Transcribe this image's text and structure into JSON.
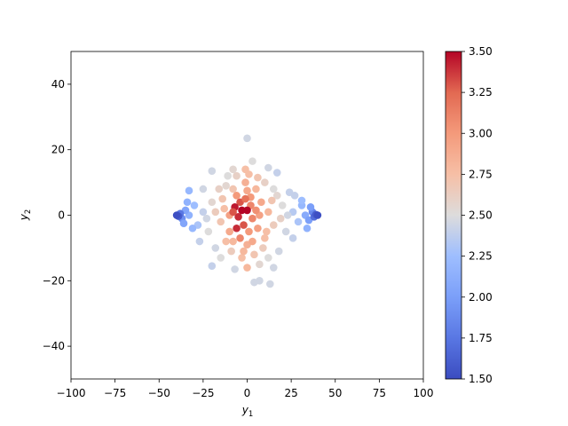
{
  "chart_data": {
    "type": "scatter",
    "title": "",
    "xlabel": "y",
    "xlabel_sub": "1",
    "ylabel": "y",
    "ylabel_sub": "2",
    "xlim": [
      -100,
      100
    ],
    "ylim": [
      -50,
      50
    ],
    "xticks": [
      -100,
      -75,
      -50,
      -25,
      0,
      25,
      50,
      75,
      100
    ],
    "yticks": [
      -40,
      -20,
      0,
      20,
      40
    ],
    "xtick_labels": [
      "−100",
      "−75",
      "−50",
      "−25",
      "0",
      "25",
      "50",
      "75",
      "100"
    ],
    "ytick_labels": [
      "−40",
      "−20",
      "0",
      "20",
      "40"
    ],
    "grid": false,
    "colorbar": {
      "colormap": "coolwarm",
      "range": [
        1.5,
        3.5
      ],
      "ticks": [
        1.5,
        1.75,
        2.0,
        2.25,
        2.5,
        2.75,
        3.0,
        3.25,
        3.5
      ],
      "tick_labels": [
        "1.50",
        "1.75",
        "2.00",
        "2.25",
        "2.50",
        "2.75",
        "3.00",
        "3.25",
        "3.50"
      ]
    },
    "points": [
      {
        "x": 0,
        "y": 23.5,
        "c": 2.45
      },
      {
        "x": 3,
        "y": 16.5,
        "c": 2.5
      },
      {
        "x": 12,
        "y": 14.5,
        "c": 2.45
      },
      {
        "x": -20,
        "y": 13.5,
        "c": 2.45
      },
      {
        "x": 17,
        "y": 13,
        "c": 2.4
      },
      {
        "x": -1,
        "y": 14,
        "c": 2.75
      },
      {
        "x": -6,
        "y": 12,
        "c": 2.6
      },
      {
        "x": 6,
        "y": 11.5,
        "c": 2.7
      },
      {
        "x": -33,
        "y": 7.5,
        "c": 2.2
      },
      {
        "x": -12,
        "y": 9,
        "c": 2.55
      },
      {
        "x": 15,
        "y": 8,
        "c": 2.5
      },
      {
        "x": 24,
        "y": 7,
        "c": 2.4
      },
      {
        "x": 0,
        "y": 7.5,
        "c": 2.9
      },
      {
        "x": -4,
        "y": 4,
        "c": 3.3
      },
      {
        "x": 2,
        "y": 3,
        "c": 3.1
      },
      {
        "x": -7,
        "y": 2.5,
        "c": 3.45
      },
      {
        "x": -3,
        "y": 1.5,
        "c": 3.5
      },
      {
        "x": 0,
        "y": 1.5,
        "c": 3.5
      },
      {
        "x": -5,
        "y": -0.5,
        "c": 3.4
      },
      {
        "x": 3,
        "y": -1,
        "c": 3.1
      },
      {
        "x": -2,
        "y": -3,
        "c": 3.3
      },
      {
        "x": -6,
        "y": -4,
        "c": 3.4
      },
      {
        "x": 1,
        "y": -5,
        "c": 3.0
      },
      {
        "x": 6,
        "y": -4,
        "c": 2.95
      },
      {
        "x": -10,
        "y": -5,
        "c": 2.9
      },
      {
        "x": 10,
        "y": -7,
        "c": 2.75
      },
      {
        "x": -8,
        "y": -8,
        "c": 2.8
      },
      {
        "x": 0,
        "y": -9,
        "c": 2.85
      },
      {
        "x": 8,
        "y": 4,
        "c": 2.9
      },
      {
        "x": 12,
        "y": 1,
        "c": 2.8
      },
      {
        "x": -13,
        "y": 2,
        "c": 2.75
      },
      {
        "x": -15,
        "y": -2,
        "c": 2.7
      },
      {
        "x": 15,
        "y": -3,
        "c": 2.65
      },
      {
        "x": -20,
        "y": 4,
        "c": 2.55
      },
      {
        "x": 20,
        "y": 3,
        "c": 2.5
      },
      {
        "x": -22,
        "y": -5,
        "c": 2.5
      },
      {
        "x": 22,
        "y": -5,
        "c": 2.45
      },
      {
        "x": -25,
        "y": 1,
        "c": 2.4
      },
      {
        "x": 26,
        "y": 1,
        "c": 2.35
      },
      {
        "x": -28,
        "y": -3,
        "c": 2.3
      },
      {
        "x": 29,
        "y": -2,
        "c": 2.3
      },
      {
        "x": -30,
        "y": 3,
        "c": 2.25
      },
      {
        "x": 31,
        "y": 3,
        "c": 2.2
      },
      {
        "x": -33,
        "y": 0,
        "c": 2.15
      },
      {
        "x": 33,
        "y": 0,
        "c": 2.1
      },
      {
        "x": -35,
        "y": 1.5,
        "c": 2.05
      },
      {
        "x": 35,
        "y": -1.5,
        "c": 2.0
      },
      {
        "x": -37,
        "y": -1,
        "c": 1.9
      },
      {
        "x": 37,
        "y": 1,
        "c": 1.85
      },
      {
        "x": -38,
        "y": 0.5,
        "c": 1.75
      },
      {
        "x": 38,
        "y": -0.5,
        "c": 1.7
      },
      {
        "x": -39,
        "y": -0.3,
        "c": 1.6
      },
      {
        "x": 39,
        "y": 0.2,
        "c": 1.6
      },
      {
        "x": -40,
        "y": 0,
        "c": 1.52
      },
      {
        "x": 40,
        "y": 0,
        "c": 1.52
      },
      {
        "x": -18,
        "y": -10,
        "c": 2.45
      },
      {
        "x": 18,
        "y": -11,
        "c": 2.45
      },
      {
        "x": -15,
        "y": -13,
        "c": 2.5
      },
      {
        "x": 12,
        "y": -13,
        "c": 2.5
      },
      {
        "x": -20,
        "y": -15.5,
        "c": 2.4
      },
      {
        "x": -7,
        "y": -16.5,
        "c": 2.45
      },
      {
        "x": 7,
        "y": -15,
        "c": 2.55
      },
      {
        "x": 0,
        "y": -16,
        "c": 2.8
      },
      {
        "x": 15,
        "y": -16,
        "c": 2.45
      },
      {
        "x": 4,
        "y": -20.5,
        "c": 2.45
      },
      {
        "x": 7,
        "y": -20,
        "c": 2.45
      },
      {
        "x": 13,
        "y": -21,
        "c": 2.45
      },
      {
        "x": -3,
        "y": -13,
        "c": 2.75
      },
      {
        "x": 4,
        "y": -12,
        "c": 2.7
      },
      {
        "x": -11,
        "y": 12,
        "c": 2.5
      },
      {
        "x": 10,
        "y": 10,
        "c": 2.6
      },
      {
        "x": -25,
        "y": 8,
        "c": 2.45
      },
      {
        "x": 27,
        "y": 6,
        "c": 2.4
      },
      {
        "x": -27,
        "y": -8,
        "c": 2.4
      },
      {
        "x": 26,
        "y": -7,
        "c": 2.4
      },
      {
        "x": -8,
        "y": 8,
        "c": 2.7
      },
      {
        "x": 5,
        "y": 8,
        "c": 2.8
      },
      {
        "x": -9,
        "y": -11,
        "c": 2.65
      },
      {
        "x": 9,
        "y": -10,
        "c": 2.65
      },
      {
        "x": -1,
        "y": 10,
        "c": 2.85
      },
      {
        "x": 2,
        "y": 5.5,
        "c": 3.0
      },
      {
        "x": -6,
        "y": 6,
        "c": 3.0
      },
      {
        "x": 7,
        "y": 0,
        "c": 2.95
      },
      {
        "x": -10,
        "y": 0,
        "c": 2.95
      },
      {
        "x": -12,
        "y": -8,
        "c": 2.75
      },
      {
        "x": 11,
        "y": -5,
        "c": 2.75
      },
      {
        "x": 3,
        "y": -8,
        "c": 2.9
      },
      {
        "x": -4,
        "y": -7,
        "c": 3.1
      },
      {
        "x": -16,
        "y": 8,
        "c": 2.6
      },
      {
        "x": 17,
        "y": 6,
        "c": 2.55
      },
      {
        "x": -18,
        "y": 1,
        "c": 2.65
      },
      {
        "x": 19,
        "y": -1,
        "c": 2.6
      },
      {
        "x": -23,
        "y": -1,
        "c": 2.45
      },
      {
        "x": 23,
        "y": 0,
        "c": 2.45
      },
      {
        "x": -31,
        "y": -4,
        "c": 2.2
      },
      {
        "x": 31,
        "y": 4.5,
        "c": 2.25
      },
      {
        "x": -34,
        "y": 4,
        "c": 2.15
      },
      {
        "x": 34,
        "y": -4,
        "c": 2.15
      },
      {
        "x": -36,
        "y": -2.5,
        "c": 2.05
      },
      {
        "x": 36,
        "y": 2.5,
        "c": 2.0
      },
      {
        "x": -8,
        "y": 14,
        "c": 2.55
      },
      {
        "x": 1,
        "y": 12.5,
        "c": 2.75
      },
      {
        "x": -14,
        "y": 5,
        "c": 2.7
      },
      {
        "x": 14,
        "y": 4.5,
        "c": 2.7
      },
      {
        "x": -2,
        "y": -11,
        "c": 2.8
      },
      {
        "x": 5,
        "y": 1.5,
        "c": 3.05
      },
      {
        "x": -8,
        "y": 1,
        "c": 3.3
      },
      {
        "x": -1,
        "y": 5,
        "c": 3.2
      }
    ]
  }
}
